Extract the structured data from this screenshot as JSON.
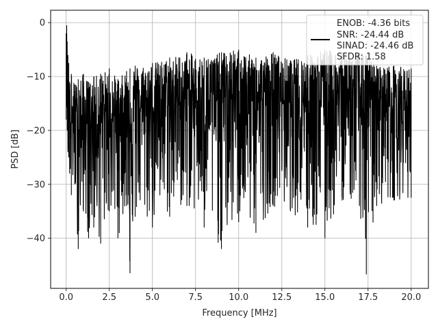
{
  "chart_data": {
    "type": "line",
    "xlabel": "Frequency [MHz]",
    "ylabel": "PSD [dB]",
    "xlim": [
      -0.9,
      21.0
    ],
    "ylim": [
      -49.3,
      2.3
    ],
    "x_ticks": [
      0.0,
      2.5,
      5.0,
      7.5,
      10.0,
      12.5,
      15.0,
      17.5,
      20.0
    ],
    "x_tick_labels": [
      "0.0",
      "2.5",
      "5.0",
      "7.5",
      "10.0",
      "12.5",
      "15.0",
      "17.5",
      "20.0"
    ],
    "y_ticks": [
      0,
      -10,
      -20,
      -30,
      -40
    ],
    "y_tick_labels": [
      "0",
      "−10",
      "−20",
      "−30",
      "−40"
    ],
    "grid": true,
    "legend_position": "top-right",
    "legend_entries": [
      "ENOB: -4.36 bits",
      "SNR: -24.44 dB",
      "SINAD: -24.46 dB",
      "SFDR: 1.58"
    ],
    "series": [
      {
        "color": "#000000",
        "x": [
          0.0,
          0.03,
          0.06,
          0.1,
          0.15,
          0.2,
          0.3,
          0.5,
          0.7,
          1.0,
          1.3,
          1.6,
          2.0,
          2.5,
          3.0,
          3.5,
          3.7,
          4.0,
          5.0,
          6.0,
          7.0,
          8.0,
          9.0,
          10.0,
          11.0,
          12.0,
          13.0,
          14.0,
          15.0,
          16.0,
          17.0,
          17.4,
          18.0,
          19.0,
          20.0
        ],
        "upper": [
          -2.0,
          -0.5,
          -3.5,
          -6.0,
          -7.5,
          -11.0,
          -9.5,
          -11.5,
          -10.5,
          -9.5,
          -11.0,
          -10.0,
          -9.5,
          -8.5,
          -10.5,
          -9.0,
          -8.5,
          -8.0,
          -7.5,
          -6.5,
          -5.5,
          -6.5,
          -5.5,
          -5.0,
          -6.5,
          -5.5,
          -7.0,
          -6.0,
          -5.0,
          -5.5,
          -5.5,
          -6.0,
          -8.0,
          -8.0,
          -8.5
        ],
        "lower": [
          -18.0,
          -12.0,
          -20.0,
          -24.0,
          -25.0,
          -28.0,
          -32.0,
          -30.0,
          -42.0,
          -35.0,
          -40.0,
          -38.0,
          -41.0,
          -35.0,
          -40.0,
          -34.0,
          -46.5,
          -36.0,
          -38.0,
          -36.0,
          -34.0,
          -38.0,
          -42.0,
          -37.0,
          -39.0,
          -34.0,
          -35.0,
          -38.0,
          -40.0,
          -33.0,
          -34.0,
          -46.7,
          -34.0,
          -33.0,
          -32.5
        ],
        "mid": [
          -15.0,
          -12.0,
          -14.0,
          -16.0,
          -17.0,
          -18.0,
          -18.5,
          -19.0,
          -19.0,
          -19.0,
          -18.5,
          -18.0,
          -18.0,
          -17.5,
          -17.0,
          -16.5,
          -16.5,
          -16.0,
          -15.5,
          -15.0,
          -14.5,
          -14.5,
          -14.0,
          -14.0,
          -14.0,
          -14.0,
          -14.0,
          -14.0,
          -14.0,
          -14.0,
          -14.0,
          -14.0,
          -14.5,
          -15.0,
          -15.5
        ]
      }
    ]
  }
}
